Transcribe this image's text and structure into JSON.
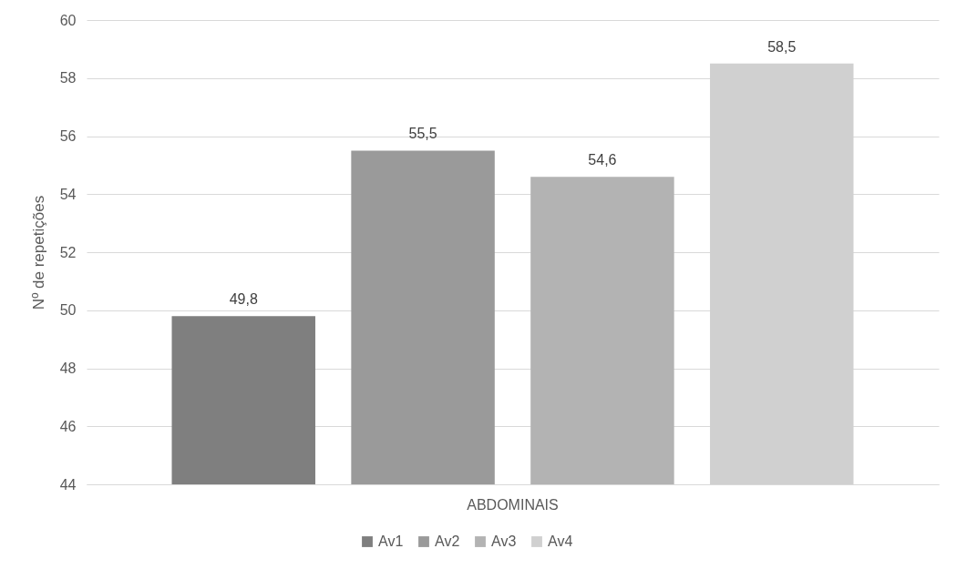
{
  "chart_data": {
    "type": "bar",
    "ylabel": "Nº de repetições",
    "categories": [
      "ABDOMINAIS"
    ],
    "series": [
      {
        "name": "Av1",
        "color": "#7f7f7f",
        "values": [
          49.8
        ],
        "value_labels": [
          "49,8"
        ]
      },
      {
        "name": "Av2",
        "color": "#9a9a9a",
        "values": [
          55.5
        ],
        "value_labels": [
          "55,5"
        ]
      },
      {
        "name": "Av3",
        "color": "#b3b3b3",
        "values": [
          54.6
        ],
        "value_labels": [
          "54,6"
        ]
      },
      {
        "name": "Av4",
        "color": "#d0d0d0",
        "values": [
          58.5
        ],
        "value_labels": [
          "58,5"
        ]
      }
    ],
    "ylim": [
      44,
      60
    ],
    "yticks": [
      44,
      46,
      48,
      50,
      52,
      54,
      56,
      58,
      60
    ],
    "grid": "y",
    "legend": "bottom"
  }
}
